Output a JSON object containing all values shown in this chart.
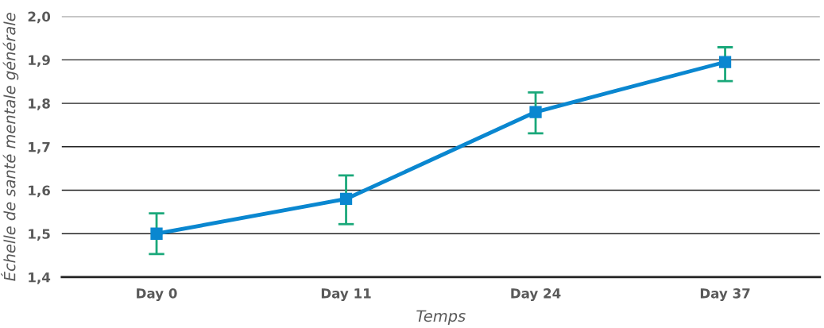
{
  "chart_data": {
    "type": "line",
    "xlabel": "Temps",
    "ylabel": "Échelle de santé mentale générale",
    "categories": [
      "Day 0",
      "Day 11",
      "Day 24",
      "Day 37"
    ],
    "series": [
      {
        "color": "#0a87d0",
        "values": [
          1.5,
          1.58,
          1.78,
          1.895
        ],
        "errors": [
          [
            1.453,
            1.547
          ],
          [
            1.522,
            1.634
          ],
          [
            1.731,
            1.825
          ],
          [
            1.851,
            1.929
          ]
        ]
      }
    ],
    "ylim": [
      1.4,
      2.0
    ],
    "yticks": [
      {
        "value": 1.4,
        "label": "1,4"
      },
      {
        "value": 1.5,
        "label": "1,5"
      },
      {
        "value": 1.6,
        "label": "1,6"
      },
      {
        "value": 1.7,
        "label": "1,7"
      },
      {
        "value": 1.8,
        "label": "1,8"
      },
      {
        "value": 1.9,
        "label": "1,9"
      },
      {
        "value": 2.0,
        "label": "2,0"
      }
    ],
    "grid": "y",
    "marker": "square",
    "line_style": "solid",
    "legend": false
  }
}
